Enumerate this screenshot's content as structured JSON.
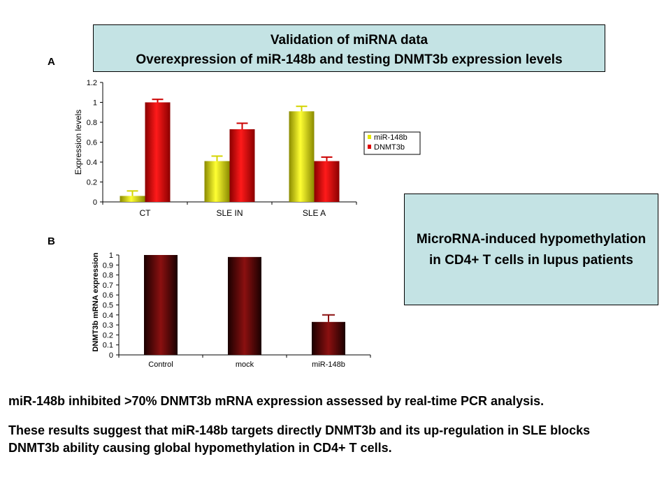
{
  "title_box": {
    "line1": "Validation of miRNA data",
    "line2": "Overexpression of  miR-148b and testing DNMT3b expression levels"
  },
  "side_box": {
    "line1": "MicroRNA-induced hypomethylation",
    "line2": "in CD4+ T cells in lupus patients"
  },
  "panel_labels": {
    "a": "A",
    "b": "B"
  },
  "captions": {
    "line1": "miR-148b inhibited >70% DNMT3b mRNA expression assessed by real-time PCR analysis.",
    "line2": "These results suggest that miR-148b targets directly DNMT3b and its up-regulation in SLE blocks",
    "line3": "DNMT3b ability causing global hypomethylation in CD4+ T cells."
  },
  "chart_data": [
    {
      "type": "bar",
      "categories": [
        "CT",
        "SLE IN",
        "SLE A"
      ],
      "series": [
        {
          "name": "miR-148b",
          "values": [
            0.06,
            0.41,
            0.91
          ],
          "errors": [
            0.05,
            0.05,
            0.05
          ],
          "color": "#e6e600"
        },
        {
          "name": "DNMT3b",
          "values": [
            1.0,
            0.73,
            0.41
          ],
          "errors": [
            0.03,
            0.06,
            0.04
          ],
          "color": "#e00000"
        }
      ],
      "title": "",
      "xlabel": "",
      "ylabel": "Expression levels",
      "ylim": [
        0,
        1.2
      ],
      "yticks": [
        "0",
        "0.2",
        "0.4",
        "0.6",
        "0.8",
        "1",
        "1.2"
      ],
      "legend": "right",
      "grid": false
    },
    {
      "type": "bar",
      "categories": [
        "Control",
        "mock",
        "miR-148b"
      ],
      "series": [
        {
          "values": [
            1.0,
            0.98,
            0.33
          ],
          "errors": [
            0,
            0,
            0.07
          ],
          "color": "#7a0a0a"
        }
      ],
      "title": "",
      "xlabel": "",
      "ylabel": "DNMT3b mRNA expression",
      "ylim": [
        0,
        1
      ],
      "yticks": [
        "0",
        "0.1",
        "0.2",
        "0.3",
        "0.4",
        "0.5",
        "0.6",
        "0.7",
        "0.8",
        "0.9",
        "1"
      ],
      "legend": "none",
      "grid": false
    }
  ]
}
